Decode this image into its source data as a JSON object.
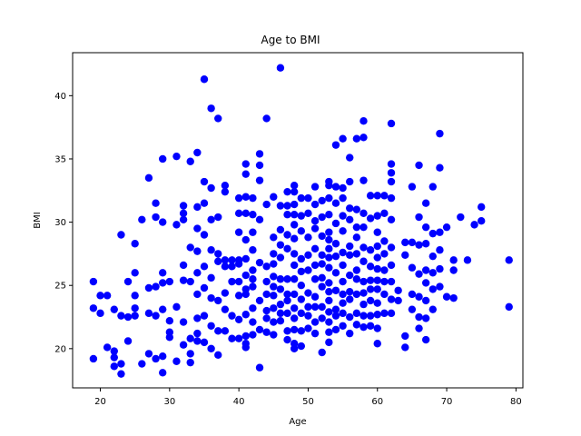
{
  "chart_data": {
    "type": "scatter",
    "title": "Age to BMI",
    "xlabel": "Age",
    "ylabel": "BMI",
    "xlim": [
      16,
      81
    ],
    "ylim": [
      16.9,
      43.4
    ],
    "xticks": [
      20,
      30,
      40,
      50,
      60,
      70,
      80
    ],
    "yticks": [
      20,
      25,
      30,
      35,
      40
    ],
    "marker_color": "#0000ff",
    "grid": false,
    "points": [
      [
        19,
        25.3
      ],
      [
        19,
        23.2
      ],
      [
        19,
        19.2
      ],
      [
        20,
        24.2
      ],
      [
        20,
        22.8
      ],
      [
        21,
        24.2
      ],
      [
        21,
        20.1
      ],
      [
        22,
        23.1
      ],
      [
        22,
        19.8
      ],
      [
        22,
        19.3
      ],
      [
        22,
        18.6
      ],
      [
        23,
        22.6
      ],
      [
        23,
        29
      ],
      [
        23,
        18.8
      ],
      [
        23,
        18
      ],
      [
        24,
        25.3
      ],
      [
        24,
        22.5
      ],
      [
        24,
        20.6
      ],
      [
        25,
        28.3
      ],
      [
        25,
        26
      ],
      [
        25,
        24.2
      ],
      [
        25,
        23.2
      ],
      [
        25,
        22.6
      ],
      [
        26,
        30.2
      ],
      [
        26,
        18.8
      ],
      [
        27,
        33.5
      ],
      [
        27,
        24.8
      ],
      [
        27,
        22.8
      ],
      [
        27,
        19.6
      ],
      [
        28,
        31.5
      ],
      [
        28,
        30.4
      ],
      [
        28,
        24.9
      ],
      [
        28,
        22.6
      ],
      [
        28,
        19.2
      ],
      [
        29,
        35
      ],
      [
        29,
        30
      ],
      [
        29,
        26
      ],
      [
        29,
        25.2
      ],
      [
        29,
        23.1
      ],
      [
        29,
        19.4
      ],
      [
        29,
        18.1
      ],
      [
        30,
        25.3
      ],
      [
        30,
        22.2
      ],
      [
        30,
        21.3
      ],
      [
        30,
        20.9
      ],
      [
        31,
        35.2
      ],
      [
        31,
        29.8
      ],
      [
        31,
        23.3
      ],
      [
        31,
        19
      ],
      [
        32,
        31.3
      ],
      [
        32,
        30.7
      ],
      [
        32,
        30.2
      ],
      [
        32,
        26.6
      ],
      [
        32,
        25.4
      ],
      [
        32,
        22.1
      ],
      [
        32,
        20.3
      ],
      [
        33,
        34.8
      ],
      [
        33,
        28
      ],
      [
        33,
        25.3
      ],
      [
        33,
        20.8
      ],
      [
        33,
        19.6
      ],
      [
        33,
        18.9
      ],
      [
        34,
        35.5
      ],
      [
        34,
        31.2
      ],
      [
        34,
        29.5
      ],
      [
        34,
        27.7
      ],
      [
        34,
        26
      ],
      [
        34,
        24.3
      ],
      [
        34,
        22.4
      ],
      [
        34,
        21.2
      ],
      [
        34,
        20.6
      ],
      [
        35,
        41.3
      ],
      [
        35,
        33.2
      ],
      [
        35,
        31.5
      ],
      [
        35,
        29
      ],
      [
        35,
        26.5
      ],
      [
        35,
        24.8
      ],
      [
        35,
        22.6
      ],
      [
        35,
        20.5
      ],
      [
        36,
        39
      ],
      [
        36,
        32.7
      ],
      [
        36,
        30.2
      ],
      [
        36,
        27.8
      ],
      [
        36,
        25.6
      ],
      [
        36,
        24
      ],
      [
        36,
        21.8
      ],
      [
        36,
        20
      ],
      [
        37,
        38.2
      ],
      [
        37,
        30.4
      ],
      [
        37,
        27.5
      ],
      [
        37,
        26.9
      ],
      [
        37,
        23.8
      ],
      [
        37,
        21.4
      ],
      [
        37,
        19.5
      ],
      [
        38,
        32.9
      ],
      [
        38,
        32.4
      ],
      [
        38,
        27
      ],
      [
        38,
        26.5
      ],
      [
        38,
        24.4
      ],
      [
        38,
        23.1
      ],
      [
        38,
        21.4
      ],
      [
        39,
        27
      ],
      [
        39,
        26.5
      ],
      [
        39,
        25.3
      ],
      [
        39,
        22.6
      ],
      [
        39,
        20.8
      ],
      [
        40,
        31.9
      ],
      [
        40,
        30.7
      ],
      [
        40,
        29.2
      ],
      [
        40,
        27
      ],
      [
        40,
        26.7
      ],
      [
        40,
        25.3
      ],
      [
        40,
        24.2
      ],
      [
        40,
        22.3
      ],
      [
        40,
        20.8
      ],
      [
        41,
        34.6
      ],
      [
        41,
        33.8
      ],
      [
        41,
        32
      ],
      [
        41,
        30.7
      ],
      [
        41,
        28.6
      ],
      [
        41,
        27.1
      ],
      [
        41,
        25.8
      ],
      [
        41,
        24.7
      ],
      [
        41,
        24.3
      ],
      [
        41,
        22.7
      ],
      [
        41,
        21
      ],
      [
        41,
        20.4
      ],
      [
        41,
        20.1
      ],
      [
        42,
        31.9
      ],
      [
        42,
        30.6
      ],
      [
        42,
        29.2
      ],
      [
        42,
        27.8
      ],
      [
        42,
        26.2
      ],
      [
        42,
        25.5
      ],
      [
        42,
        24.9
      ],
      [
        42,
        23.2
      ],
      [
        42,
        22.1
      ],
      [
        42,
        21.1
      ],
      [
        43,
        35.4
      ],
      [
        43,
        34.5
      ],
      [
        43,
        33.3
      ],
      [
        43,
        30.2
      ],
      [
        43,
        26.8
      ],
      [
        43,
        23.8
      ],
      [
        43,
        21.5
      ],
      [
        43,
        18.5
      ],
      [
        44,
        38.2
      ],
      [
        44,
        31.4
      ],
      [
        44,
        26.5
      ],
      [
        44,
        25.3
      ],
      [
        44,
        24.3
      ],
      [
        44,
        23
      ],
      [
        44,
        22.4
      ],
      [
        44,
        21.3
      ],
      [
        45,
        32
      ],
      [
        45,
        28.8
      ],
      [
        45,
        27.5
      ],
      [
        45,
        26.7
      ],
      [
        45,
        25.7
      ],
      [
        45,
        24.9
      ],
      [
        45,
        24.2
      ],
      [
        45,
        23.2
      ],
      [
        45,
        22.1
      ],
      [
        45,
        21.1
      ],
      [
        46,
        42.2
      ],
      [
        46,
        31.3
      ],
      [
        46,
        29.4
      ],
      [
        46,
        28.2
      ],
      [
        46,
        27.2
      ],
      [
        46,
        25.5
      ],
      [
        46,
        24.7
      ],
      [
        46,
        23.5
      ],
      [
        46,
        22.8
      ],
      [
        46,
        22.2
      ],
      [
        47,
        32.4
      ],
      [
        47,
        31.3
      ],
      [
        47,
        30.6
      ],
      [
        47,
        29
      ],
      [
        47,
        27.9
      ],
      [
        47,
        25.5
      ],
      [
        47,
        24.3
      ],
      [
        47,
        23.8
      ],
      [
        47,
        22.8
      ],
      [
        47,
        21.4
      ],
      [
        47,
        20.7
      ],
      [
        48,
        32.9
      ],
      [
        48,
        32.4
      ],
      [
        48,
        31.4
      ],
      [
        48,
        30.6
      ],
      [
        48,
        29.8
      ],
      [
        48,
        28.7
      ],
      [
        48,
        27.5
      ],
      [
        48,
        26.6
      ],
      [
        48,
        25.5
      ],
      [
        48,
        24.3
      ],
      [
        48,
        23.2
      ],
      [
        48,
        22.4
      ],
      [
        48,
        21.5
      ],
      [
        48,
        20.4
      ],
      [
        48,
        20
      ],
      [
        49,
        31.9
      ],
      [
        49,
        30.5
      ],
      [
        49,
        29.3
      ],
      [
        49,
        27.1
      ],
      [
        49,
        26.1
      ],
      [
        49,
        25
      ],
      [
        49,
        23.9
      ],
      [
        49,
        22.8
      ],
      [
        49,
        21.4
      ],
      [
        49,
        20.2
      ],
      [
        50,
        31.9
      ],
      [
        50,
        30.7
      ],
      [
        50,
        28.8
      ],
      [
        50,
        27.4
      ],
      [
        50,
        26.2
      ],
      [
        50,
        24.4
      ],
      [
        50,
        23.3
      ],
      [
        50,
        22.6
      ],
      [
        50,
        21.6
      ],
      [
        51,
        32.8
      ],
      [
        51,
        31.4
      ],
      [
        51,
        30.1
      ],
      [
        51,
        29.5
      ],
      [
        51,
        27.9
      ],
      [
        51,
        26.6
      ],
      [
        51,
        25.5
      ],
      [
        51,
        24.1
      ],
      [
        51,
        23.3
      ],
      [
        51,
        22.1
      ],
      [
        51,
        21.2
      ],
      [
        52,
        31.7
      ],
      [
        52,
        30.4
      ],
      [
        52,
        28.9
      ],
      [
        52,
        27.4
      ],
      [
        52,
        26.7
      ],
      [
        52,
        25.6
      ],
      [
        52,
        24.9
      ],
      [
        52,
        23.3
      ],
      [
        52,
        22.4
      ],
      [
        52,
        19.7
      ],
      [
        53,
        33.2
      ],
      [
        53,
        32.9
      ],
      [
        53,
        31.9
      ],
      [
        53,
        30.6
      ],
      [
        53,
        29.2
      ],
      [
        53,
        28.6
      ],
      [
        53,
        27.9
      ],
      [
        53,
        27.2
      ],
      [
        53,
        26.4
      ],
      [
        53,
        25.2
      ],
      [
        53,
        24.5
      ],
      [
        53,
        23.8
      ],
      [
        53,
        22.9
      ],
      [
        53,
        22.1
      ],
      [
        53,
        21.3
      ],
      [
        53,
        20.5
      ],
      [
        54,
        36.1
      ],
      [
        54,
        32.8
      ],
      [
        54,
        31.5
      ],
      [
        54,
        29.9
      ],
      [
        54,
        28.3
      ],
      [
        54,
        27.3
      ],
      [
        54,
        26
      ],
      [
        54,
        24.6
      ],
      [
        54,
        23.1
      ],
      [
        54,
        22.6
      ],
      [
        54,
        21.5
      ],
      [
        55,
        36.6
      ],
      [
        55,
        32.7
      ],
      [
        55,
        31.9
      ],
      [
        55,
        30.5
      ],
      [
        55,
        29.3
      ],
      [
        55,
        27.6
      ],
      [
        55,
        26.6
      ],
      [
        55,
        25.3
      ],
      [
        55,
        24.3
      ],
      [
        55,
        23.6
      ],
      [
        55,
        22.8
      ],
      [
        55,
        21.8
      ],
      [
        56,
        35.1
      ],
      [
        56,
        33.2
      ],
      [
        56,
        31.1
      ],
      [
        56,
        30.2
      ],
      [
        56,
        28.1
      ],
      [
        56,
        27.4
      ],
      [
        56,
        25.8
      ],
      [
        56,
        24.5
      ],
      [
        56,
        23.9
      ],
      [
        56,
        22.5
      ],
      [
        56,
        21.2
      ],
      [
        57,
        36.6
      ],
      [
        57,
        31
      ],
      [
        57,
        29.6
      ],
      [
        57,
        28.8
      ],
      [
        57,
        27.5
      ],
      [
        57,
        26.2
      ],
      [
        57,
        25.5
      ],
      [
        57,
        24.3
      ],
      [
        57,
        22.8
      ],
      [
        57,
        21.9
      ],
      [
        58,
        38
      ],
      [
        58,
        36.7
      ],
      [
        58,
        33.3
      ],
      [
        58,
        30.7
      ],
      [
        58,
        29.6
      ],
      [
        58,
        28
      ],
      [
        58,
        26.9
      ],
      [
        58,
        25.3
      ],
      [
        58,
        24.4
      ],
      [
        58,
        23.5
      ],
      [
        58,
        22.6
      ],
      [
        58,
        21.7
      ],
      [
        59,
        32.1
      ],
      [
        59,
        30.3
      ],
      [
        59,
        27.8
      ],
      [
        59,
        26.5
      ],
      [
        59,
        25.4
      ],
      [
        59,
        24.7
      ],
      [
        59,
        23.8
      ],
      [
        59,
        22.6
      ],
      [
        59,
        21.8
      ],
      [
        60,
        32.1
      ],
      [
        60,
        30.5
      ],
      [
        60,
        29.2
      ],
      [
        60,
        28.1
      ],
      [
        60,
        27.2
      ],
      [
        60,
        26.3
      ],
      [
        60,
        25.4
      ],
      [
        60,
        24.7
      ],
      [
        60,
        23.6
      ],
      [
        60,
        22.7
      ],
      [
        60,
        21.6
      ],
      [
        60,
        20.4
      ],
      [
        61,
        32.1
      ],
      [
        61,
        30.7
      ],
      [
        61,
        28.5
      ],
      [
        61,
        27.5
      ],
      [
        61,
        26.2
      ],
      [
        61,
        25.3
      ],
      [
        61,
        24.3
      ],
      [
        61,
        22.8
      ],
      [
        62,
        37.8
      ],
      [
        62,
        34.6
      ],
      [
        62,
        33.9
      ],
      [
        62,
        33.2
      ],
      [
        62,
        31.9
      ],
      [
        62,
        30.2
      ],
      [
        62,
        28
      ],
      [
        62,
        26.6
      ],
      [
        62,
        25.3
      ],
      [
        62,
        23.9
      ],
      [
        62,
        22.8
      ],
      [
        63,
        24.6
      ],
      [
        63,
        23.8
      ],
      [
        64,
        28.4
      ],
      [
        64,
        27.4
      ],
      [
        64,
        21
      ],
      [
        64,
        20.1
      ],
      [
        65,
        32.8
      ],
      [
        65,
        28.4
      ],
      [
        65,
        26.4
      ],
      [
        65,
        24.3
      ],
      [
        65,
        23.1
      ],
      [
        66,
        34.5
      ],
      [
        66,
        30.4
      ],
      [
        66,
        28.2
      ],
      [
        66,
        25.9
      ],
      [
        66,
        24.1
      ],
      [
        66,
        22.5
      ],
      [
        66,
        21.6
      ],
      [
        67,
        31.5
      ],
      [
        67,
        29.6
      ],
      [
        67,
        28.3
      ],
      [
        67,
        26.2
      ],
      [
        67,
        25.2
      ],
      [
        67,
        23.8
      ],
      [
        67,
        22.4
      ],
      [
        67,
        20.7
      ],
      [
        68,
        32.8
      ],
      [
        68,
        29.1
      ],
      [
        68,
        27.3
      ],
      [
        68,
        26
      ],
      [
        68,
        24.7
      ],
      [
        68,
        23.1
      ],
      [
        69,
        37
      ],
      [
        69,
        34.3
      ],
      [
        69,
        29.2
      ],
      [
        69,
        27.8
      ],
      [
        69,
        26.3
      ],
      [
        69,
        24.9
      ],
      [
        70,
        29.6
      ],
      [
        70,
        24.1
      ],
      [
        71,
        27
      ],
      [
        71,
        26.2
      ],
      [
        71,
        24
      ],
      [
        72,
        30.4
      ],
      [
        73,
        27
      ],
      [
        74,
        29.8
      ],
      [
        75,
        31.2
      ],
      [
        75,
        30.1
      ],
      [
        79,
        27
      ],
      [
        79,
        23.3
      ]
    ]
  }
}
